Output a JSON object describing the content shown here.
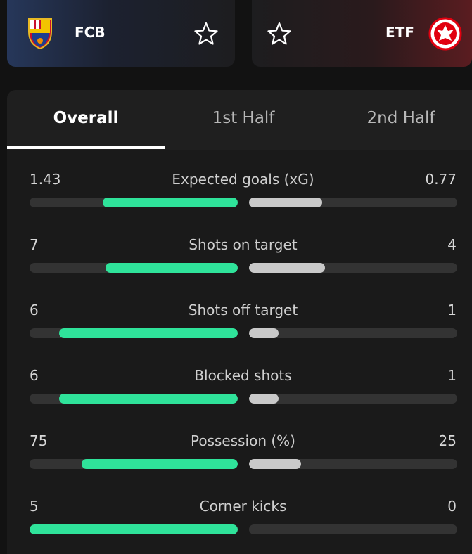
{
  "header": {
    "home_team": "FCB",
    "away_team": "ETF"
  },
  "tabs": [
    "Overall",
    "1st Half",
    "2nd Half"
  ],
  "active_tab": 0,
  "stats": [
    {
      "label": "Expected goals (xG)",
      "home": 1.43,
      "away": 0.77
    },
    {
      "label": "Shots on target",
      "home": 7,
      "away": 4
    },
    {
      "label": "Shots off target",
      "home": 6,
      "away": 1
    },
    {
      "label": "Blocked shots",
      "home": 6,
      "away": 1
    },
    {
      "label": "Possession (%)",
      "home": 75,
      "away": 25
    },
    {
      "label": "Corner kicks",
      "home": 5,
      "away": 0
    }
  ]
}
